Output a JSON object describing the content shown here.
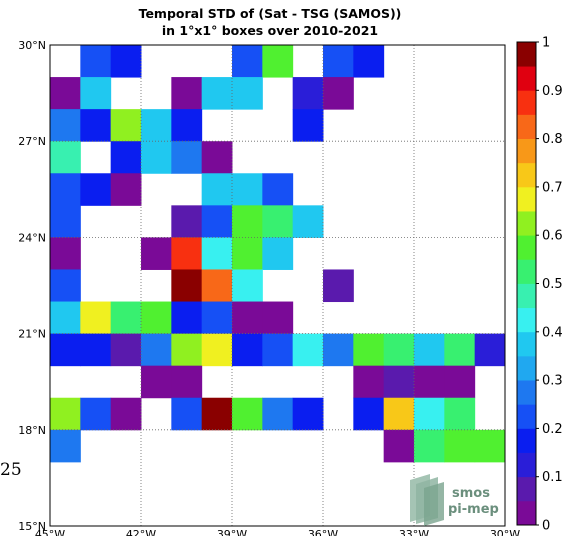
{
  "chart_data": {
    "type": "heatmap",
    "title": "Temporal STD of (Sat - TSG (SAMOS))",
    "subtitle": "in 1°x1° boxes over 2010-2021",
    "x_ticks": [
      "45°W",
      "42°W",
      "39°W",
      "36°W",
      "33°W",
      "30°W"
    ],
    "y_ticks": [
      "30°N",
      "27°N",
      "24°N",
      "21°N",
      "18°N",
      "15°N"
    ],
    "lon_range": [
      -45,
      -30
    ],
    "lat_range": [
      15,
      30
    ],
    "grid": true,
    "colorbar": {
      "range": [
        0,
        1
      ],
      "ticks": [
        "0",
        "0.1",
        "0.2",
        "0.3",
        "0.4",
        "0.5",
        "0.6",
        "0.7",
        "0.8",
        "0.9",
        "1"
      ]
    },
    "cells_note": "rows ordered north to south (30°N-29°N first), columns west to east (45°W-44°W first); null = no data",
    "values": [
      [
        null,
        0.22,
        0.18,
        null,
        null,
        null,
        0.22,
        0.57,
        null,
        0.22,
        0.16,
        null,
        null,
        null,
        null
      ],
      [
        0.05,
        0.38,
        null,
        null,
        0.05,
        0.38,
        0.38,
        null,
        0.12,
        0.05,
        null,
        null,
        null,
        null,
        null
      ],
      [
        0.3,
        0.2,
        0.65,
        0.38,
        0.18,
        null,
        null,
        null,
        0.18,
        null,
        null,
        null,
        null,
        null,
        null
      ],
      [
        0.5,
        null,
        0.18,
        0.38,
        0.3,
        0.05,
        null,
        null,
        null,
        null,
        null,
        null,
        null,
        null,
        null
      ],
      [
        0.22,
        0.18,
        0.05,
        null,
        null,
        0.38,
        0.38,
        0.22,
        null,
        null,
        null,
        null,
        null,
        null,
        null
      ],
      [
        0.22,
        null,
        null,
        null,
        0.1,
        0.22,
        0.57,
        0.52,
        0.38,
        null,
        null,
        null,
        null,
        null,
        null
      ],
      [
        0.05,
        null,
        null,
        0.05,
        0.9,
        0.45,
        0.57,
        0.38,
        null,
        null,
        null,
        null,
        null,
        null,
        null
      ],
      [
        0.22,
        null,
        null,
        null,
        1.0,
        0.82,
        0.45,
        null,
        null,
        0.1,
        null,
        null,
        null,
        null,
        null
      ],
      [
        0.38,
        0.68,
        0.52,
        0.57,
        0.18,
        0.22,
        0.05,
        0.05,
        null,
        null,
        null,
        null,
        null,
        null,
        null
      ],
      [
        0.18,
        0.18,
        0.1,
        0.3,
        0.65,
        0.68,
        0.16,
        0.22,
        0.45,
        0.3,
        0.57,
        0.52,
        0.38,
        0.52,
        0.12
      ],
      [
        null,
        null,
        null,
        0.05,
        0.05,
        null,
        null,
        null,
        null,
        null,
        0.05,
        0.1,
        0.05,
        0.05,
        null
      ],
      [
        0.65,
        0.22,
        0.05,
        null,
        0.22,
        1.0,
        0.57,
        0.3,
        0.18,
        null,
        0.18,
        0.72,
        0.45,
        0.52,
        null
      ],
      [
        0.3,
        null,
        null,
        null,
        null,
        null,
        null,
        null,
        null,
        null,
        null,
        0.05,
        0.52,
        0.57,
        0.57
      ],
      [
        null,
        null,
        null,
        null,
        null,
        null,
        null,
        null,
        null,
        null,
        null,
        null,
        null,
        null,
        null
      ],
      [
        null,
        null,
        null,
        null,
        null,
        null,
        null,
        null,
        null,
        null,
        null,
        null,
        null,
        null,
        null
      ]
    ]
  },
  "stray_label": "25",
  "logo": {
    "line1": "smos",
    "line2": "pi-mep",
    "color": "#6b8f7d"
  },
  "colors": {
    "frame": "#000000",
    "grid": "#666666",
    "background": "#ffffff"
  }
}
